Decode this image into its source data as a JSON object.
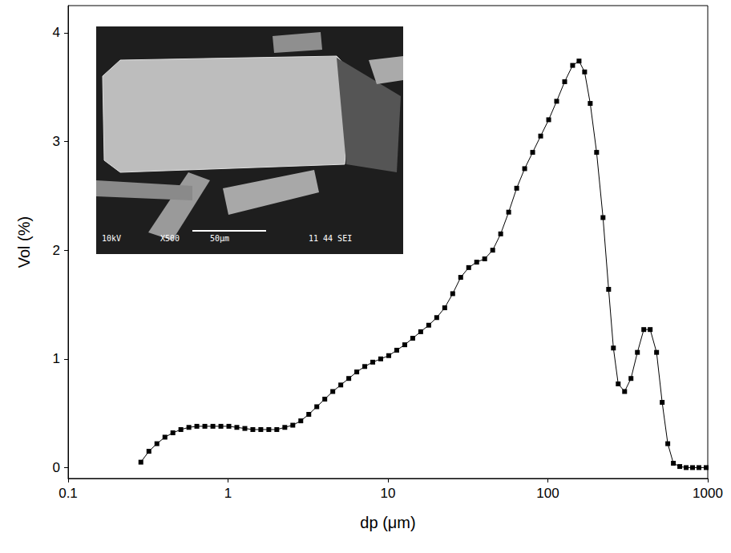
{
  "chart_data": {
    "type": "line",
    "x_label": "dp (μm)",
    "y_label": "Vol (%)",
    "log": "x",
    "grid": false,
    "marker": "square",
    "line_style": "solid",
    "color": "#000000",
    "xlim": [
      0.1,
      1000
    ],
    "xticks": [
      0.1,
      1,
      10,
      100,
      1000
    ],
    "ylim": [
      -0.1,
      4.25
    ],
    "yticks": [
      0,
      1,
      2,
      3,
      4
    ],
    "x": [
      0.285,
      0.32,
      0.359,
      0.403,
      0.452,
      0.507,
      0.569,
      0.638,
      0.716,
      0.804,
      0.902,
      1.012,
      1.135,
      1.274,
      1.429,
      1.603,
      1.799,
      2.018,
      2.265,
      2.541,
      2.851,
      3.199,
      3.589,
      4.027,
      4.519,
      5.07,
      5.689,
      6.383,
      7.161,
      8.035,
      9.016,
      10.12,
      11.35,
      12.74,
      14.29,
      16.03,
      17.99,
      20.18,
      22.65,
      25.41,
      28.51,
      31.99,
      35.89,
      40.27,
      45.19,
      50.7,
      56.89,
      63.83,
      71.61,
      80.35,
      90.16,
      101.2,
      113.5,
      127.4,
      142.9,
      156.7,
      169.8,
      184.1,
      201.8,
      221.3,
      239.9,
      257.0,
      275.4,
      302.0,
      331.1,
      363.1,
      398.1,
      436.5,
      478.6,
      518.8,
      562.3,
      609.5,
      668.3,
      732.8,
      803.5,
      881.0,
      977.2
    ],
    "values": [
      0.05,
      0.15,
      0.22,
      0.28,
      0.32,
      0.35,
      0.37,
      0.38,
      0.38,
      0.38,
      0.38,
      0.38,
      0.37,
      0.36,
      0.35,
      0.35,
      0.35,
      0.35,
      0.37,
      0.39,
      0.43,
      0.49,
      0.56,
      0.63,
      0.7,
      0.76,
      0.82,
      0.88,
      0.93,
      0.97,
      1.0,
      1.03,
      1.08,
      1.13,
      1.19,
      1.25,
      1.31,
      1.38,
      1.47,
      1.6,
      1.75,
      1.84,
      1.89,
      1.92,
      2.0,
      2.15,
      2.35,
      2.57,
      2.75,
      2.9,
      3.05,
      3.2,
      3.37,
      3.55,
      3.7,
      3.74,
      3.64,
      3.35,
      2.9,
      2.3,
      1.64,
      1.1,
      0.77,
      0.7,
      0.82,
      1.06,
      1.27,
      1.27,
      1.06,
      0.6,
      0.22,
      0.04,
      0.01,
      0,
      0,
      0,
      0
    ],
    "inset": {
      "texts": [
        "10kV",
        "X500",
        "50μm",
        "11 44 SEI"
      ]
    }
  }
}
